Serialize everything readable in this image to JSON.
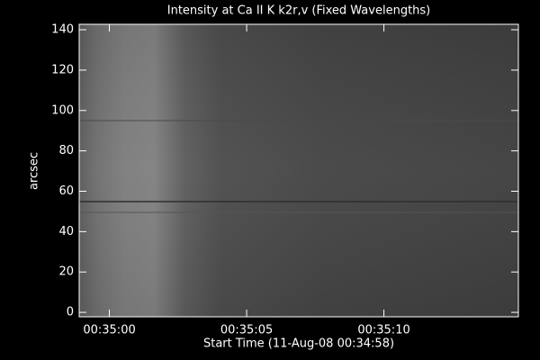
{
  "chart_data": {
    "type": "image",
    "title": "Intensity at Ca II K k2r,v (Fixed Wavelengths)",
    "x_label": "Start Time (11-Aug-08 00:34:58)",
    "y_label": "arcsec",
    "xlim": [
      0.9,
      16.9
    ],
    "xticks": [
      {
        "value": 2,
        "label": "00:35:00"
      },
      {
        "value": 7,
        "label": "00:35:05"
      },
      {
        "value": 12,
        "label": "00:35:10"
      }
    ],
    "ylim": [
      -2.2,
      142.7
    ],
    "yticks": [
      0,
      20,
      40,
      60,
      80,
      100,
      120,
      140
    ]
  }
}
